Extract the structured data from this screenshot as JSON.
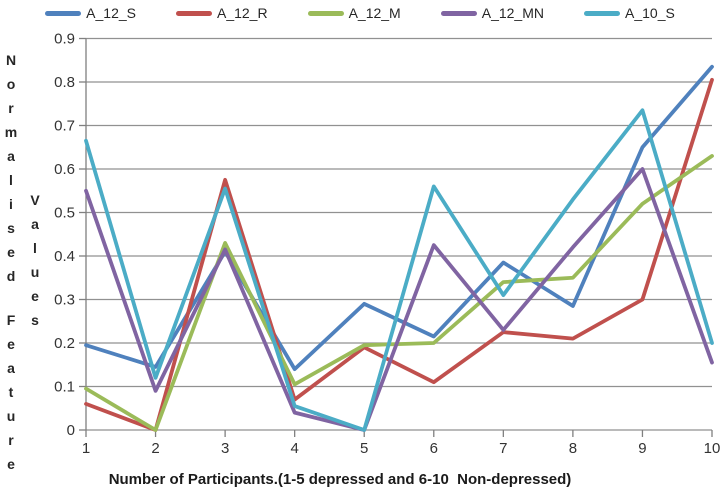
{
  "chart_data": {
    "type": "line",
    "x": [
      1,
      2,
      3,
      4,
      5,
      6,
      7,
      8,
      9,
      10
    ],
    "series": [
      {
        "name": "A_12_S",
        "color": "#4F81BD",
        "values": [
          0.195,
          0.145,
          0.41,
          0.14,
          0.29,
          0.215,
          0.385,
          0.285,
          0.65,
          0.835
        ]
      },
      {
        "name": "A_12_R",
        "color": "#C0504D",
        "values": [
          0.06,
          0,
          0.575,
          0.07,
          0.19,
          0.11,
          0.225,
          0.21,
          0.3,
          0.805
        ]
      },
      {
        "name": "A_12_M",
        "color": "#9BBB59",
        "values": [
          0.095,
          0,
          0.43,
          0.105,
          0.195,
          0.2,
          0.34,
          0.35,
          0.52,
          0.63
        ]
      },
      {
        "name": "A_12_MN",
        "color": "#8064A2",
        "values": [
          0.55,
          0.09,
          0.415,
          0.04,
          0,
          0.425,
          0.23,
          0.42,
          0.6,
          0.155
        ]
      },
      {
        "name": "A_10_S",
        "color": "#4BACC6",
        "values": [
          0.665,
          0.12,
          0.555,
          0.055,
          0,
          0.56,
          0.31,
          0.53,
          0.735,
          0.2
        ]
      }
    ],
    "title": "",
    "xlabel": "Number of Participants.(1-5 depressed and 6-10  Non-depressed)",
    "ylabel": "Normalised Feature Values",
    "ylim": [
      0,
      0.9
    ],
    "ytick_step": 0.1,
    "ytick_labels": [
      "0",
      "0.1",
      "0.2",
      "0.3",
      "0.4",
      "0.5",
      "0.6",
      "0.7",
      "0.8",
      "0.9"
    ],
    "grid": "horizontal",
    "legend_position": "top",
    "markers": "none"
  },
  "y_axis_label": {
    "column1_top": "Normalised",
    "column2": "Values",
    "column1_bottom": "Feature"
  },
  "x_axis": {
    "title": "Number of Participants.(1-5 depressed and 6-10  Non-depressed)",
    "tick_labels": [
      "1",
      "2",
      "3",
      "4",
      "5",
      "6",
      "7",
      "8",
      "9",
      "10"
    ]
  },
  "colors": {
    "background": "#ffffff",
    "grid": "#919191",
    "axis": "#808080",
    "tick_text": "#333333",
    "title_text": "#1a1a1a"
  }
}
